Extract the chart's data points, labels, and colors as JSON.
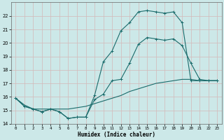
{
  "title": "",
  "xlabel": "Humidex (Indice chaleur)",
  "ylabel": "",
  "bg_color": "#cce8e8",
  "grid_color": "#b8d8d8",
  "line_color": "#1a6b6b",
  "xlim": [
    -0.5,
    23.5
  ],
  "ylim": [
    14,
    23
  ],
  "xticks": [
    0,
    1,
    2,
    3,
    4,
    5,
    6,
    7,
    8,
    9,
    10,
    11,
    12,
    13,
    14,
    15,
    16,
    17,
    18,
    19,
    20,
    21,
    22,
    23
  ],
  "yticks": [
    14,
    15,
    16,
    17,
    18,
    19,
    20,
    21,
    22
  ],
  "line1_x": [
    0,
    1,
    2,
    3,
    4,
    5,
    6,
    7,
    8,
    9,
    10,
    11,
    12,
    13,
    14,
    15,
    16,
    17,
    18,
    19,
    20,
    21,
    22,
    23
  ],
  "line1_y": [
    15.9,
    15.3,
    15.1,
    14.9,
    15.1,
    14.9,
    14.4,
    14.5,
    14.5,
    16.1,
    18.6,
    19.4,
    20.9,
    21.5,
    22.3,
    22.4,
    22.3,
    22.2,
    22.3,
    21.5,
    17.2,
    17.2,
    17.2,
    17.2
  ],
  "line2_x": [
    0,
    1,
    2,
    3,
    4,
    5,
    6,
    7,
    8,
    9,
    10,
    11,
    12,
    13,
    14,
    15,
    16,
    17,
    18,
    19,
    20,
    21,
    22,
    23
  ],
  "line2_y": [
    15.9,
    15.3,
    15.1,
    14.9,
    15.1,
    14.9,
    14.4,
    14.5,
    14.5,
    15.8,
    16.2,
    17.2,
    17.3,
    18.5,
    19.9,
    20.4,
    20.3,
    20.2,
    20.3,
    19.8,
    18.5,
    17.3,
    17.2,
    17.2
  ],
  "line3_x": [
    0,
    1,
    2,
    3,
    4,
    5,
    6,
    7,
    8,
    9,
    10,
    11,
    12,
    13,
    14,
    15,
    16,
    17,
    18,
    19,
    20,
    21,
    22,
    23
  ],
  "line3_y": [
    15.9,
    15.4,
    15.1,
    15.1,
    15.1,
    15.1,
    15.1,
    15.2,
    15.3,
    15.5,
    15.7,
    15.9,
    16.1,
    16.4,
    16.6,
    16.8,
    17.0,
    17.1,
    17.2,
    17.3,
    17.3,
    17.2,
    17.2,
    17.2
  ]
}
